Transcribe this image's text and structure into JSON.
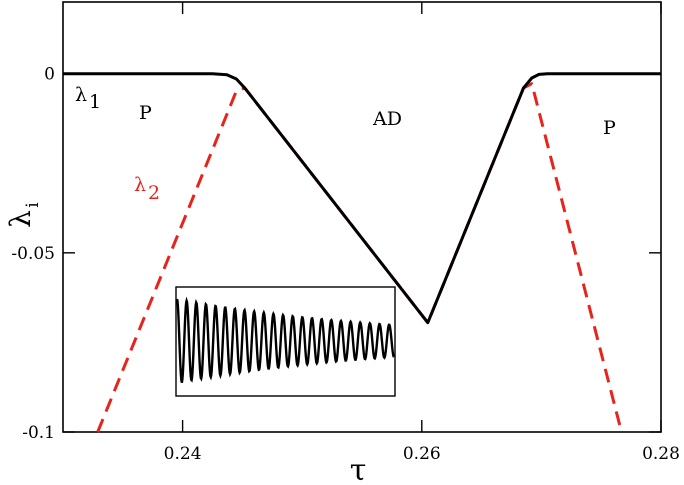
{
  "chart_data": {
    "type": "line",
    "xlabel": "τ",
    "ylabel": "λ",
    "ylabel_sub": "i",
    "xlim": [
      0.23,
      0.28
    ],
    "ylim": [
      -0.1,
      0.02
    ],
    "x_ticks": [
      0.24,
      0.26,
      0.28
    ],
    "x_tick_labels": [
      "0.24",
      "0.26",
      "0.28"
    ],
    "y_ticks": [
      0,
      -0.05,
      -0.1
    ],
    "y_tick_labels": [
      "0",
      "-0.05",
      "-0.1"
    ],
    "grid": false,
    "series": [
      {
        "name": "λ1",
        "color": "#000000",
        "style": "solid",
        "x": [
          0.23,
          0.236,
          0.2425,
          0.2437,
          0.2445,
          0.2452,
          0.2605,
          0.2685,
          0.2692,
          0.2698,
          0.2705,
          0.28
        ],
        "y": [
          0.0,
          0.0,
          0.0,
          -0.0003,
          -0.0015,
          -0.004,
          -0.0695,
          -0.004,
          -0.0012,
          -0.0002,
          0.0,
          0.0
        ]
      },
      {
        "name": "λ2",
        "color": "#e8231b",
        "style": "dashed",
        "x": [
          0.2329,
          0.2445,
          0.2452,
          0.2605,
          0.2685,
          0.2692,
          0.2767
        ],
        "y": [
          -0.1,
          -0.0048,
          -0.004,
          -0.0695,
          -0.004,
          -0.0028,
          -0.1
        ]
      }
    ],
    "inset": {
      "content": "damped oscillation"
    }
  },
  "labels": {
    "lambda1": {
      "base": "λ",
      "sub": "1"
    },
    "lambda2": {
      "base": "λ",
      "sub": "2"
    },
    "p_left": "P",
    "ad": "AD",
    "p_right": "P"
  },
  "colors": {
    "lambda1": "#000000",
    "lambda2": "#e8231b"
  }
}
